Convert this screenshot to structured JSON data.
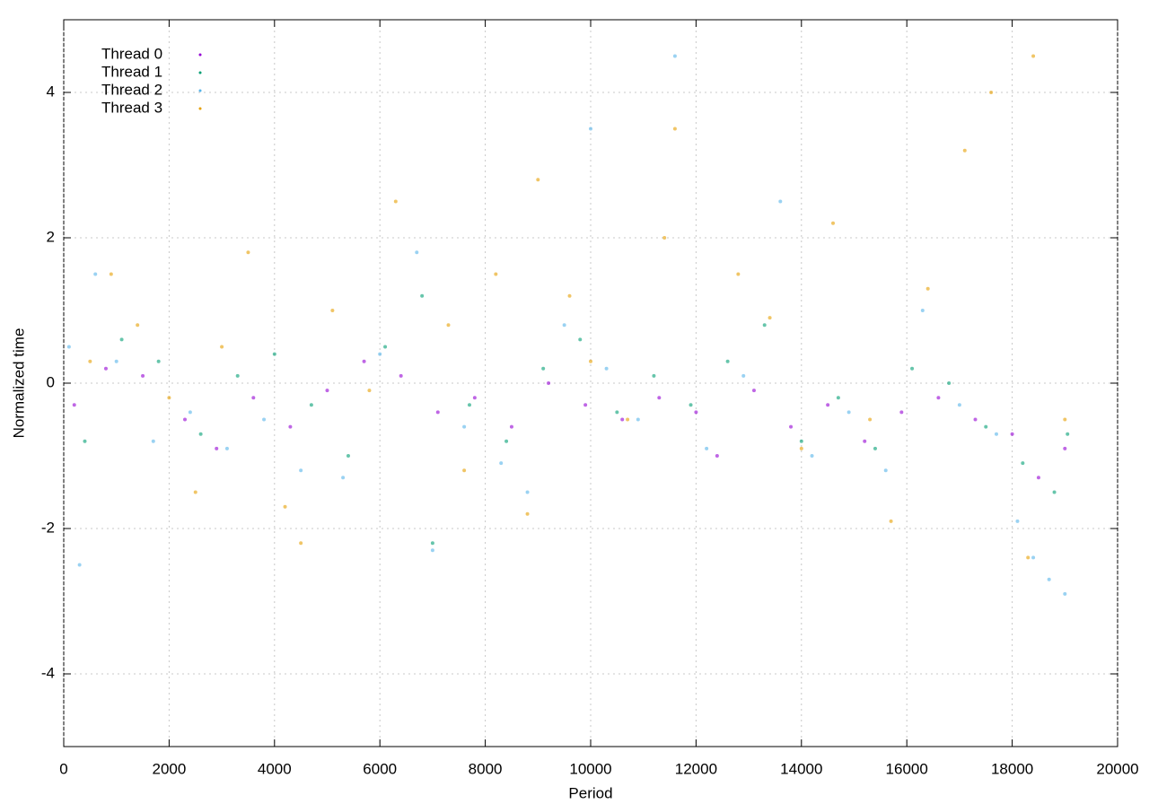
{
  "chart_data": {
    "type": "scatter",
    "x_label": "Period",
    "y_label": "Normalized time",
    "xlim": [
      0,
      20000
    ],
    "ylim": [
      -5,
      5
    ],
    "xticks": [
      0,
      2000,
      4000,
      6000,
      8000,
      10000,
      12000,
      14000,
      16000,
      18000,
      20000
    ],
    "yticks": [
      -4,
      -2,
      0,
      2,
      4
    ],
    "grid": true,
    "legend": "upper-left",
    "series": [
      {
        "name": "Thread 0",
        "color": "#9400d3",
        "x": [
          200,
          800,
          1500,
          2300,
          2900,
          3600,
          4300,
          5000,
          5700,
          6400,
          7100,
          7800,
          8500,
          9200,
          9900,
          10600,
          11300,
          12000,
          12400,
          13100,
          13800,
          14500,
          15200,
          15900,
          16600,
          17300,
          18000,
          18500,
          19000
        ],
        "values": [
          -0.3,
          0.2,
          0.1,
          -0.5,
          -0.9,
          -0.2,
          -0.6,
          -0.1,
          0.3,
          0.1,
          -0.4,
          -0.2,
          -0.6,
          0.0,
          -0.3,
          -0.5,
          -0.2,
          -0.4,
          -1.0,
          -0.1,
          -0.6,
          -0.3,
          -0.8,
          -0.4,
          -0.2,
          -0.5,
          -0.7,
          -1.3,
          -0.9
        ]
      },
      {
        "name": "Thread 1",
        "color": "#009e73",
        "x": [
          400,
          1100,
          1800,
          2600,
          3300,
          4000,
          4700,
          5400,
          6100,
          6800,
          7000,
          7700,
          8400,
          9100,
          9800,
          10500,
          11200,
          11900,
          12600,
          13300,
          14000,
          14700,
          15400,
          16100,
          16800,
          17500,
          18200,
          18800,
          19050
        ],
        "values": [
          -0.8,
          0.6,
          0.3,
          -0.7,
          0.1,
          0.4,
          -0.3,
          -1.0,
          0.5,
          1.2,
          -2.2,
          -0.3,
          -0.8,
          0.2,
          0.6,
          -0.4,
          0.1,
          -0.3,
          0.3,
          0.8,
          -0.8,
          -0.2,
          -0.9,
          0.2,
          0.0,
          -0.6,
          -1.1,
          -1.5,
          -0.7
        ]
      },
      {
        "name": "Thread 2",
        "color": "#56b4e9",
        "x": [
          100,
          300,
          600,
          1000,
          1700,
          2400,
          3100,
          3800,
          4500,
          5300,
          6000,
          6700,
          7000,
          7600,
          8300,
          8800,
          9500,
          10000,
          10300,
          10900,
          11600,
          12200,
          12900,
          13600,
          14200,
          14900,
          15600,
          16300,
          17000,
          17700,
          18100,
          18400,
          18700,
          19000
        ],
        "values": [
          0.5,
          -2.5,
          1.5,
          0.3,
          -0.8,
          -0.4,
          -0.9,
          -0.5,
          -1.2,
          -1.3,
          0.4,
          1.8,
          -2.3,
          -0.6,
          -1.1,
          -1.5,
          0.8,
          3.5,
          0.2,
          -0.5,
          4.5,
          -0.9,
          0.1,
          2.5,
          -1.0,
          -0.4,
          -1.2,
          1.0,
          -0.3,
          -0.7,
          -1.9,
          -2.4,
          -2.7,
          -2.9
        ]
      },
      {
        "name": "Thread 3",
        "color": "#e69f00",
        "x": [
          500,
          900,
          1400,
          2000,
          2500,
          3000,
          3500,
          4200,
          4500,
          5100,
          5800,
          6300,
          7300,
          7600,
          8200,
          8800,
          9000,
          9600,
          10000,
          10700,
          11400,
          11600,
          12800,
          13400,
          14000,
          14600,
          15300,
          15700,
          16400,
          17100,
          17600,
          18300,
          18400,
          19000
        ],
        "values": [
          0.3,
          1.5,
          0.8,
          -0.2,
          -1.5,
          0.5,
          1.8,
          -1.7,
          -2.2,
          1.0,
          -0.1,
          2.5,
          0.8,
          -1.2,
          1.5,
          -1.8,
          2.8,
          1.2,
          0.3,
          -0.5,
          2.0,
          3.5,
          1.5,
          0.9,
          -0.9,
          2.2,
          -0.5,
          -1.9,
          1.3,
          3.2,
          4.0,
          -2.4,
          4.5,
          -0.5
        ]
      }
    ]
  }
}
